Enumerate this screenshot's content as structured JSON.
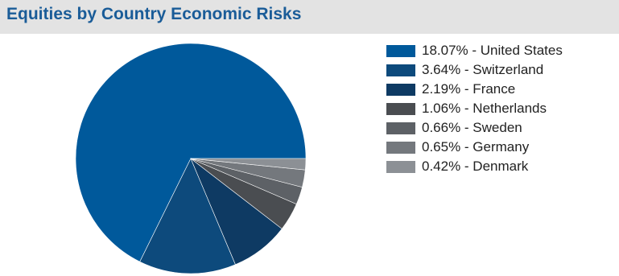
{
  "header": {
    "title": "Equities by Country Economic Risks"
  },
  "chart_data": {
    "type": "pie",
    "title": "Equities by Country Economic Risks",
    "slices": [
      {
        "label": "United States",
        "value": 18.07,
        "legend": "18.07% - United States",
        "color": "#00599b"
      },
      {
        "label": "Switzerland",
        "value": 3.64,
        "legend": "3.64% - Switzerland",
        "color": "#0d4a7c"
      },
      {
        "label": "France",
        "value": 2.19,
        "legend": "2.19% - France",
        "color": "#0e3a63"
      },
      {
        "label": "Netherlands",
        "value": 1.06,
        "legend": "1.06% - Netherlands",
        "color": "#4a4d51"
      },
      {
        "label": "Sweden",
        "value": 0.66,
        "legend": "0.66% - Sweden",
        "color": "#5d6166"
      },
      {
        "label": "Germany",
        "value": 0.65,
        "legend": "0.65% - Germany",
        "color": "#74787d"
      },
      {
        "label": "Denmark",
        "value": 0.42,
        "legend": "0.42% - Denmark",
        "color": "#8c9095"
      }
    ],
    "legend_position": "right",
    "start_direction": "east",
    "direction": "counterclockwise"
  }
}
